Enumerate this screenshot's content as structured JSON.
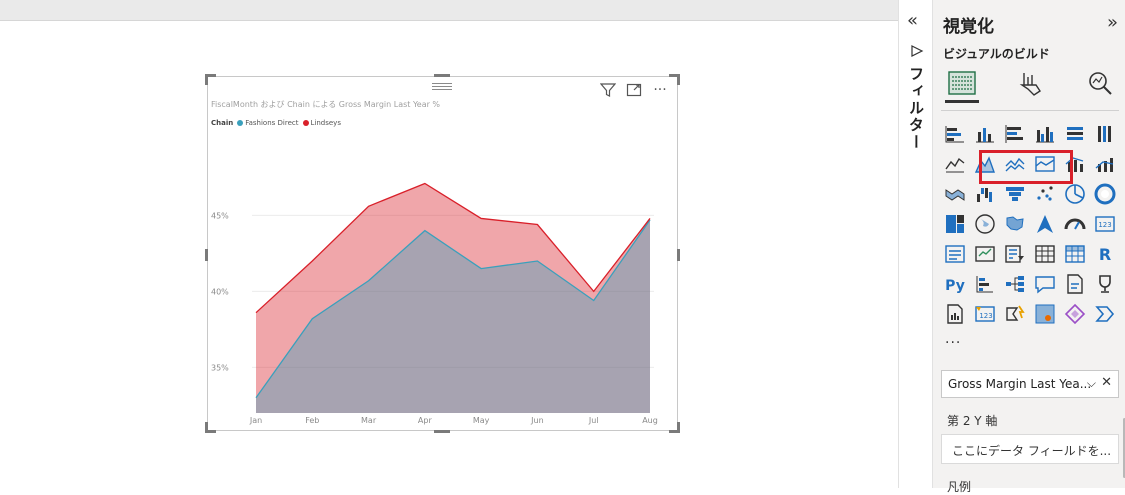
{
  "canvas": {},
  "visual": {
    "title": "FiscalMonth および Chain による Gross Margin Last Year %",
    "legend": {
      "title": "Chain",
      "items": [
        {
          "label": "Fashions Direct",
          "color": "#3aa0bc"
        },
        {
          "label": "Lindseys",
          "color": "#d9202a"
        }
      ]
    },
    "toolbar": {
      "filter_icon": "funnel-icon",
      "focus_icon": "focus-mode-icon",
      "more_icon": "more-options-icon",
      "more_label": "···"
    }
  },
  "chart_data": {
    "type": "area",
    "title": "FiscalMonth および Chain による Gross Margin Last Year %",
    "categories": [
      "Jan",
      "Feb",
      "Mar",
      "Apr",
      "May",
      "Jun",
      "Jul",
      "Aug"
    ],
    "y_ticks": [
      "35%",
      "40%",
      "45%"
    ],
    "ylim": [
      32.0,
      49.5
    ],
    "grid": true,
    "legend_position": "top-left",
    "series": [
      {
        "name": "Fashions Direct",
        "color": "#3aa0bc",
        "values": [
          33.0,
          38.2,
          40.7,
          44.0,
          41.5,
          42.0,
          39.4,
          44.7
        ]
      },
      {
        "name": "Lindseys",
        "color": "#d9202a",
        "values": [
          38.6,
          42.0,
          45.6,
          47.1,
          44.8,
          44.4,
          40.0,
          44.8
        ]
      }
    ]
  },
  "filter_rail": {
    "collapse_label": "«",
    "label": "フィルター"
  },
  "pane": {
    "title": "視覚化",
    "expand_label": "»",
    "subtitle": "ビジュアルのビルド",
    "modes": [
      "build-visual-icon",
      "format-visual-icon",
      "analytics-icon"
    ],
    "more_label": "···",
    "field_well": {
      "value": "Gross Margin Last Yea...",
      "chevron": "⌵",
      "close": "✕"
    },
    "secondary_axis_label": "第 2 Y 軸",
    "drop_placeholder": "ここにデータ フィールドを...",
    "legend_label": "凡例",
    "highlight_color": "#d9202a"
  }
}
